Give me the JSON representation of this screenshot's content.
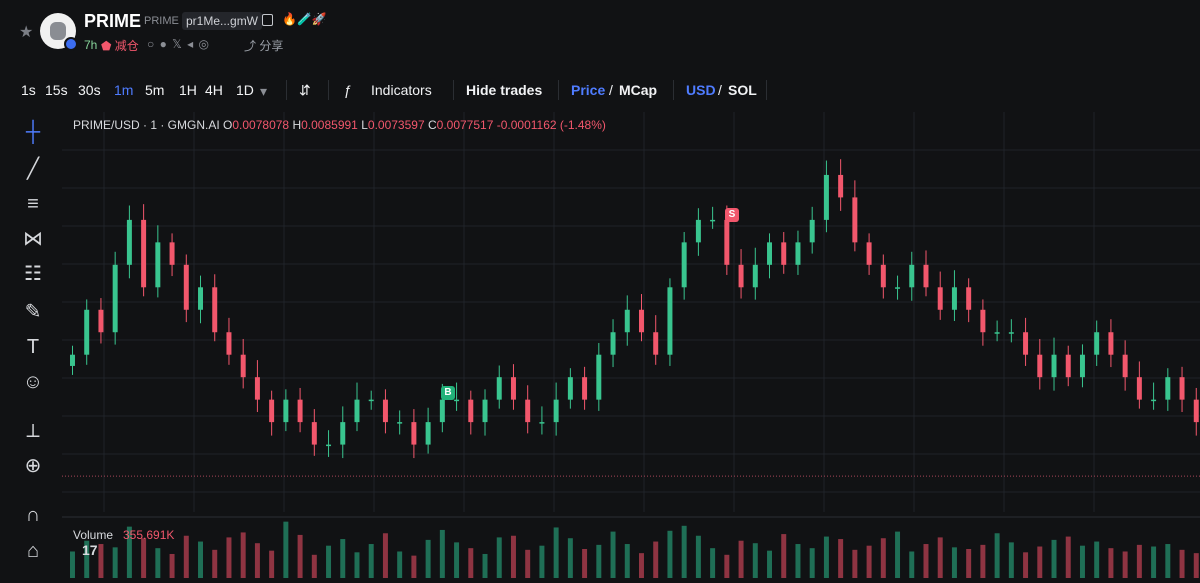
{
  "header": {
    "title": "PRIME",
    "ticker": "PRIME",
    "address": "pr1Me...gmW",
    "age": "7h",
    "warning": "减仓",
    "share": "分享",
    "icons": [
      "star-icon",
      "copy-icon",
      "flame-icon",
      "pill-icon",
      "globe-icon",
      "x-icon",
      "telegram-icon",
      "web-icon",
      "share-icon"
    ]
  },
  "toolbar": {
    "timeframes": [
      "1s",
      "15s",
      "30s",
      "1m",
      "5m",
      "1H",
      "4H",
      "1D"
    ],
    "active_timeframe": "1m",
    "indicators_label": "Indicators",
    "hide_trades_label": "Hide trades",
    "price_label": "Price",
    "mcap_label": "MCap",
    "usd_label": "USD",
    "sol_label": "SOL"
  },
  "legend": {
    "symbol": "PRIME/USD · 1 · GMGN.AI",
    "open_label": "O",
    "open": "0.0078078",
    "high_label": "H",
    "high": "0.0085991",
    "low_label": "L",
    "low": "0.0073597",
    "close_label": "C",
    "close": "0.0077517",
    "change": "-0.0001162 (-1.48%)"
  },
  "volume": {
    "label": "Volume",
    "value": "355.691K"
  },
  "markers": {
    "buy": "B",
    "sell": "S"
  },
  "chart_data": {
    "type": "candlestick",
    "price_series": [
      0.0079,
      0.0081,
      0.008,
      0.0083,
      0.0085,
      0.0082,
      0.0084,
      0.0083,
      0.0081,
      0.0082,
      0.008,
      0.0079,
      0.0078,
      0.0077,
      0.0076,
      0.0077,
      0.0076,
      0.0075,
      0.0075,
      0.0076,
      0.0077,
      0.0077,
      0.0076,
      0.0076,
      0.0075,
      0.0076,
      0.0077,
      0.0077,
      0.0076,
      0.0077,
      0.0078,
      0.0077,
      0.0076,
      0.0076,
      0.0077,
      0.0078,
      0.0077,
      0.0079,
      0.008,
      0.0081,
      0.008,
      0.0079,
      0.0082,
      0.0084,
      0.0085,
      0.0085,
      0.0083,
      0.0082,
      0.0083,
      0.0084,
      0.0083,
      0.0084,
      0.0085,
      0.0087,
      0.0086,
      0.0084,
      0.0083,
      0.0082,
      0.0082,
      0.0083,
      0.0082,
      0.0081,
      0.0082,
      0.0081,
      0.008,
      0.008,
      0.008,
      0.0079,
      0.0078,
      0.0079,
      0.0078,
      0.0079,
      0.008,
      0.0079,
      0.0078,
      0.0077,
      0.0077,
      0.0078,
      0.0077,
      0.0076
    ],
    "volume_series": [
      3.2,
      4.5,
      4.1,
      3.7,
      6.2,
      4.8,
      3.6,
      2.9,
      5.1,
      4.4,
      3.4,
      4.9,
      5.5,
      4.2,
      3.3,
      6.8,
      5.2,
      2.8,
      3.9,
      4.7,
      3.1,
      4.1,
      5.4,
      3.2,
      2.7,
      4.6,
      5.8,
      4.3,
      3.6,
      2.9,
      4.9,
      5.1,
      3.4,
      3.9,
      6.1,
      4.8,
      3.5,
      4.0,
      5.6,
      4.1,
      3.0,
      4.4,
      5.7,
      6.3,
      5.1,
      3.6,
      2.8,
      4.5,
      4.2,
      3.3,
      5.3,
      4.1,
      3.6,
      5.0,
      4.7,
      3.4,
      3.9,
      4.8,
      5.6,
      3.2,
      4.1,
      4.9,
      3.7,
      3.5,
      4.0,
      5.4,
      4.3,
      3.1,
      3.8,
      4.6,
      5.0,
      3.9,
      4.4,
      3.6,
      3.2,
      4.0,
      3.8,
      4.1,
      3.4,
      3.0
    ],
    "ylim": [
      0.0072,
      0.0089
    ],
    "grid": true,
    "x_labels": [],
    "baseline_price": 0.0073597
  },
  "colors": {
    "up": "#39c58f",
    "down": "#f2576c",
    "grid": "#202329",
    "active": "#4f7cff"
  }
}
